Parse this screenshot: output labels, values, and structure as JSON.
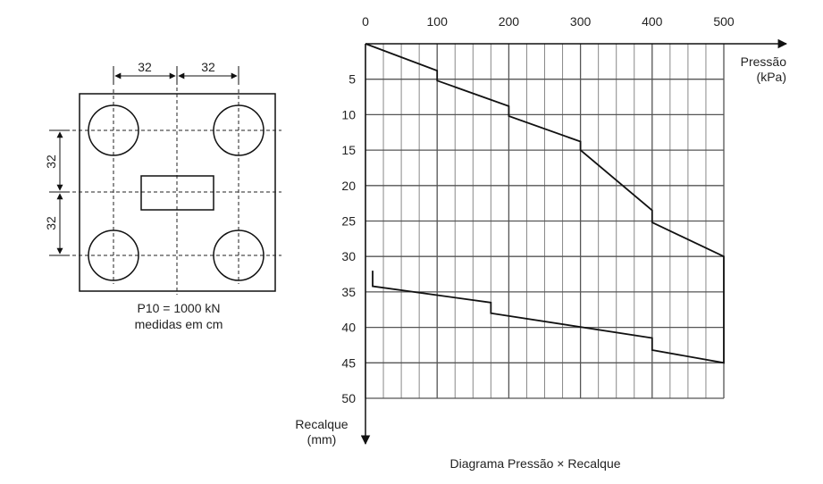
{
  "diagram": {
    "dimensions": [
      32,
      32,
      32,
      32
    ],
    "caption": [
      "P10 = 1000 kN",
      "medidas em cm"
    ]
  },
  "chart_data": {
    "type": "line",
    "title": "Diagrama Pressão × Recalque",
    "x_label": [
      "Pressão",
      "(kPa)"
    ],
    "y_label": [
      "Recalque",
      "(mm)"
    ],
    "x": [
      0,
      100,
      100,
      200,
      200,
      300,
      300,
      400,
      400,
      500,
      500,
      400,
      400,
      175,
      175,
      10,
      10
    ],
    "values": [
      0,
      3.8,
      5.2,
      8.8,
      10.2,
      13.8,
      15,
      23.5,
      25.2,
      30,
      45,
      43.2,
      41.5,
      38,
      36.5,
      34.2,
      32
    ],
    "color": "#111111",
    "xlim": [
      0,
      500
    ],
    "xticks": [
      0,
      100,
      200,
      300,
      400,
      500
    ],
    "xminorticks": [
      25,
      50,
      75,
      125,
      150,
      175,
      225,
      250,
      275,
      325,
      350,
      375,
      425,
      450,
      475
    ],
    "ylim": [
      0,
      50
    ],
    "yticks": [
      5,
      10,
      15,
      20,
      25,
      30,
      35,
      40,
      45,
      50
    ],
    "y_inverted": true,
    "grid": true
  }
}
